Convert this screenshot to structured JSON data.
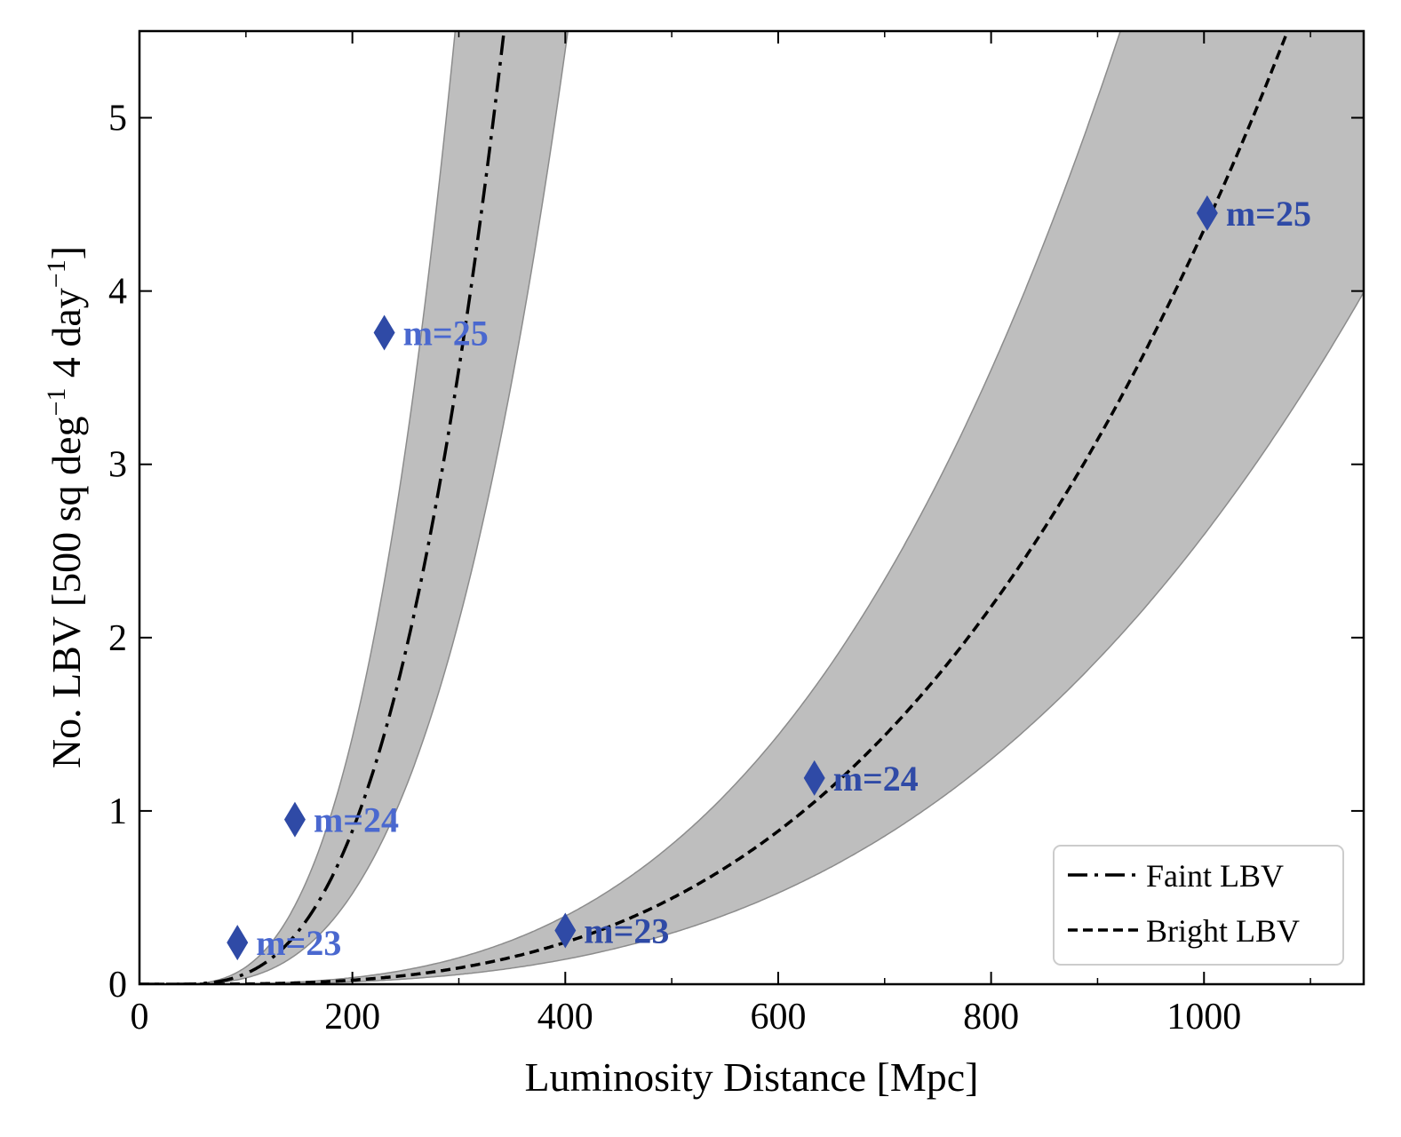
{
  "chart_data": {
    "type": "line",
    "xlabel": "Luminosity Distance [Mpc]",
    "ylabel": "No. LBV [500 sq deg",
    "ylabel_sup1": "−1",
    "ylabel_mid": " 4 day",
    "ylabel_sup2": "−1",
    "ylabel_end": "]",
    "xlim": [
      0,
      1150
    ],
    "ylim": [
      0,
      5.5
    ],
    "x_ticks": [
      0,
      200,
      400,
      600,
      800,
      1000
    ],
    "x_tick_labels": [
      "0",
      "200",
      "400",
      "600",
      "800",
      "1000"
    ],
    "y_ticks": [
      0,
      1,
      2,
      3,
      4,
      5
    ],
    "y_tick_labels": [
      "0",
      "1",
      "2",
      "3",
      "4",
      "5"
    ],
    "legend_position": "lower-right",
    "series": [
      {
        "name": "Faint LBV",
        "linestyle": "dashdot",
        "curve": {
          "d0": 30,
          "scale": 177,
          "power": 3
        },
        "band": {
          "lower_scale": 211,
          "upper_scale": 151
        },
        "points": [
          {
            "x": 92,
            "y": 0.24,
            "label": "m=23"
          },
          {
            "x": 146,
            "y": 0.95,
            "label": "m=24"
          },
          {
            "x": 230,
            "y": 3.76,
            "label": "m=25"
          }
        ]
      },
      {
        "name": "Bright LBV",
        "linestyle": "dashed",
        "curve": {
          "d0": 30,
          "scale": 594,
          "power": 3
        },
        "band": {
          "lower_scale": 706,
          "upper_scale": 505
        },
        "points": [
          {
            "x": 400,
            "y": 0.31,
            "label": "m=23"
          },
          {
            "x": 634,
            "y": 1.19,
            "label": "m=24"
          },
          {
            "x": 1003,
            "y": 4.45,
            "label": "m=25"
          }
        ]
      }
    ],
    "colors": {
      "band_fill": "#bebebe",
      "band_edge": "#8c8c8c",
      "marker": "#2f4aa6",
      "marker_label": "#4a68cf",
      "line": "#000000"
    }
  }
}
